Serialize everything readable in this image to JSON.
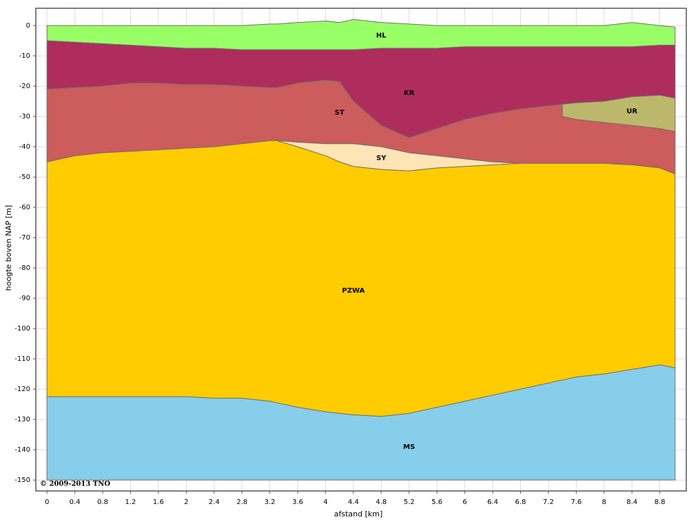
{
  "chart_data": {
    "type": "layered-area",
    "x_label": "afstand [km]",
    "y_label": "hoogte boven NAP [m]",
    "copyright": "© 2009-2013 TNO",
    "x": [
      0,
      0.4,
      0.8,
      1.2,
      1.6,
      2,
      2.4,
      2.8,
      3.2,
      3.3,
      3.6,
      4,
      4.2,
      4.4,
      4.8,
      5.2,
      5.6,
      6,
      6.4,
      6.8,
      7.2,
      7.39,
      7.4,
      7.6,
      8,
      8.4,
      8.8,
      9.02
    ],
    "xlim": [
      -0.16,
      9.18
    ],
    "ylim": [
      -153.6,
      5.7
    ],
    "xticks": [
      0,
      0.4,
      0.8,
      1.2,
      1.6,
      2,
      2.4,
      2.8,
      3.2,
      3.6,
      4,
      4.4,
      4.8,
      5.2,
      5.6,
      6,
      6.4,
      6.8,
      7.2,
      7.6,
      8,
      8.4,
      8.8
    ],
    "yticks": [
      0,
      -10,
      -20,
      -30,
      -40,
      -50,
      -60,
      -70,
      -80,
      -90,
      -100,
      -110,
      -120,
      -130,
      -140,
      -150
    ],
    "grid": true,
    "grid_color": "#f2cfe0",
    "layers": [
      {
        "name": "HL",
        "color": "#99ff66",
        "top": [
          0,
          0,
          0,
          0,
          0,
          0,
          0,
          0,
          0.5,
          0.5,
          1,
          1.5,
          1,
          2,
          1,
          0.5,
          0,
          0,
          0,
          0,
          0,
          0,
          0,
          0,
          0,
          1,
          0,
          -0.5
        ],
        "bottom": [
          -5,
          -5.5,
          -6,
          -6.5,
          -7,
          -7.5,
          -7.5,
          -8,
          -8,
          -8,
          -8,
          -8,
          -8,
          -8,
          -7.5,
          -7.5,
          -7.5,
          -7,
          -7,
          -7,
          -7,
          -7,
          -7,
          -7,
          -7,
          -7,
          -6.5,
          -6.5
        ]
      },
      {
        "name": "KR",
        "color": "#ae2d5d",
        "top": [
          -5,
          -5.5,
          -6,
          -6.5,
          -7,
          -7.5,
          -7.5,
          -8,
          -8,
          -8,
          -8,
          -8,
          -8,
          -8,
          -7.5,
          -7.5,
          -7.5,
          -7,
          -7,
          -7,
          -7,
          -7,
          -7,
          -7,
          -7,
          -7,
          -6.5,
          -6.5
        ],
        "bottom": [
          -21,
          -20.5,
          -20,
          -19,
          -19,
          -19.5,
          -19.5,
          -20,
          -20.5,
          -20.5,
          -19,
          -18,
          -18.5,
          -25,
          -33,
          -37,
          -34,
          -31,
          -29,
          -27.5,
          -26.5,
          -26,
          -26,
          -25.5,
          -25,
          -23.5,
          -23,
          -24
        ]
      },
      {
        "name": "UR",
        "color": "#bdb76b",
        "top": [
          null,
          null,
          null,
          null,
          null,
          null,
          null,
          null,
          null,
          null,
          null,
          null,
          null,
          null,
          null,
          null,
          null,
          null,
          null,
          null,
          null,
          null,
          -26,
          -25.5,
          -25,
          -23.5,
          -23,
          -24
        ],
        "bottom": [
          null,
          null,
          null,
          null,
          null,
          null,
          null,
          null,
          null,
          null,
          null,
          null,
          null,
          null,
          null,
          null,
          null,
          null,
          null,
          null,
          null,
          null,
          -30,
          -31,
          -32,
          -33,
          -34,
          -35
        ]
      },
      {
        "name": "ST",
        "color": "#cd5c5c",
        "top": [
          -21,
          -20.5,
          -20,
          -19,
          -19,
          -19.5,
          -19.5,
          -20,
          -20.5,
          -20.5,
          -19,
          -18,
          -18.5,
          -25,
          -33,
          -37,
          -34,
          -31,
          -29,
          -27.5,
          -26.5,
          -26,
          -30,
          -31,
          -32,
          -33,
          -34,
          -35
        ],
        "bottom": [
          -45,
          -43,
          -42,
          -41.5,
          -41,
          -40.5,
          -40,
          -39,
          -38,
          -38,
          -38.5,
          -39,
          -39,
          -39,
          -40,
          -42,
          -43,
          -44,
          -45,
          -45.5,
          -45.5,
          -45.5,
          -45.5,
          -45.5,
          -45.5,
          -46,
          -47,
          -49
        ]
      },
      {
        "name": "SY",
        "color": "#ffe4b5",
        "top": [
          null,
          null,
          null,
          null,
          null,
          null,
          null,
          null,
          null,
          -38,
          -38.5,
          -39,
          -39,
          -39,
          -40,
          -42,
          -43,
          -44,
          -45,
          -45.5,
          null,
          null,
          null,
          null,
          null,
          null,
          null,
          null
        ],
        "bottom": [
          null,
          null,
          null,
          null,
          null,
          null,
          null,
          null,
          null,
          -38,
          -40,
          -43,
          -45,
          -46.5,
          -47.5,
          -48,
          -47,
          -46.5,
          -46,
          -45.5,
          null,
          null,
          null,
          null,
          null,
          null,
          null,
          null
        ]
      },
      {
        "name": "PZWA",
        "color": "#ffcc00",
        "top": [
          -45,
          -43,
          -42,
          -41.5,
          -41,
          -40.5,
          -40,
          -39,
          -38,
          -38,
          -40,
          -43,
          -45,
          -46.5,
          -47.5,
          -48,
          -47,
          -46.5,
          -46,
          -45.5,
          -45.5,
          -45.5,
          -45.5,
          -45.5,
          -45.5,
          -46,
          -47,
          -49
        ],
        "bottom": [
          -122.5,
          -122.5,
          -122.5,
          -122.5,
          -122.5,
          -122.5,
          -123,
          -123,
          -124,
          -124.5,
          -126,
          -127.5,
          -128,
          -128.5,
          -129,
          -128,
          -126,
          -124,
          -122,
          -120,
          -118,
          -117,
          -117,
          -116,
          -115,
          -113.5,
          -112,
          -113
        ]
      },
      {
        "name": "MS",
        "color": "#87ceeb",
        "top": [
          -122.5,
          -122.5,
          -122.5,
          -122.5,
          -122.5,
          -122.5,
          -123,
          -123,
          -124,
          -124.5,
          -126,
          -127.5,
          -128,
          -128.5,
          -129,
          -128,
          -126,
          -124,
          -122,
          -120,
          -118,
          -117,
          -117,
          -116,
          -115,
          -113.5,
          -112,
          -113
        ],
        "bottom": [
          -150,
          -150,
          -150,
          -150,
          -150,
          -150,
          -150,
          -150,
          -150,
          -150,
          -150,
          -150,
          -150,
          -150,
          -150,
          -150,
          -150,
          -150,
          -150,
          -150,
          -150,
          -150,
          -150,
          -150,
          -150,
          -150,
          -150,
          -150
        ]
      }
    ]
  }
}
